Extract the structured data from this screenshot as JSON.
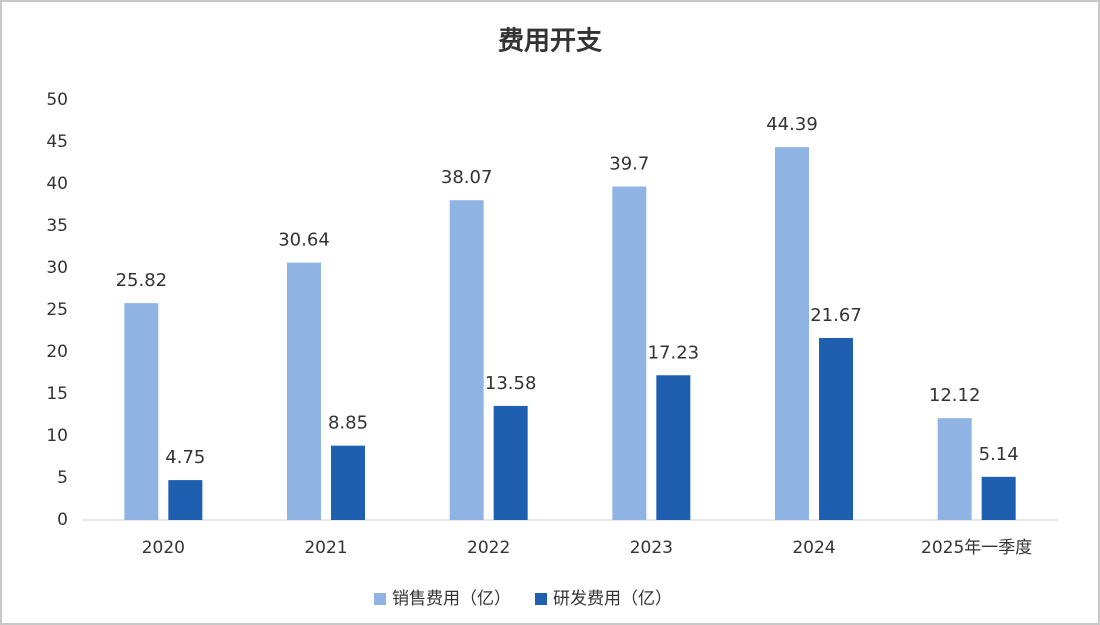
{
  "chart_data": {
    "type": "bar",
    "title": "费用开支",
    "categories": [
      "2020",
      "2021",
      "2022",
      "2023",
      "2024",
      "2025年一季度"
    ],
    "series": [
      {
        "name": "销售费用（亿）",
        "color": "#8fb4e3",
        "values": [
          25.82,
          30.64,
          38.07,
          39.7,
          44.39,
          12.12
        ]
      },
      {
        "name": "研发费用（亿）",
        "color": "#1f5fb0",
        "values": [
          4.75,
          8.85,
          13.58,
          17.23,
          21.67,
          5.14
        ]
      }
    ],
    "ylim": [
      0,
      50
    ],
    "yticks": [
      0,
      5,
      10,
      15,
      20,
      25,
      30,
      35,
      40,
      45,
      50
    ],
    "grid": false,
    "legend": "bottom"
  }
}
